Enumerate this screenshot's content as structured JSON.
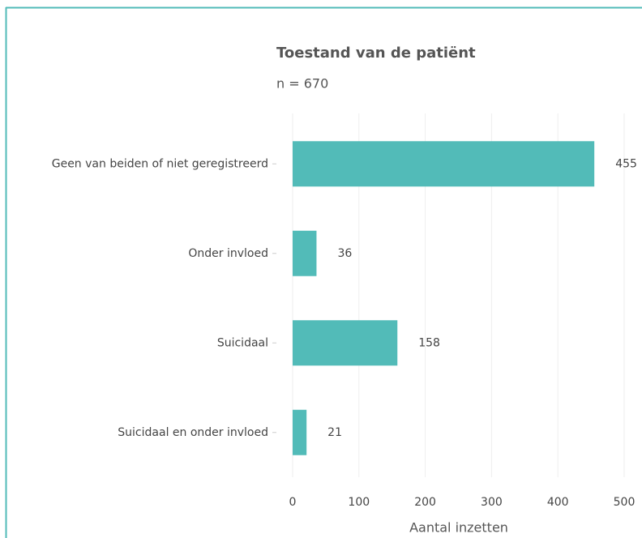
{
  "chart_data": {
    "type": "bar",
    "orientation": "horizontal",
    "title": "Toestand van de patiënt",
    "subtitle": "n = 670",
    "categories": [
      "Geen van beiden of niet geregistreerd",
      "Onder invloed",
      "Suicidaal",
      "Suicidaal en onder invloed"
    ],
    "values": [
      455,
      36,
      158,
      21
    ],
    "color": "#52bbb8",
    "xlim": [
      0,
      500
    ],
    "xticks": [
      0,
      100,
      200,
      300,
      400,
      500
    ],
    "grid": true,
    "xlabel": "Aantal inzetten"
  }
}
